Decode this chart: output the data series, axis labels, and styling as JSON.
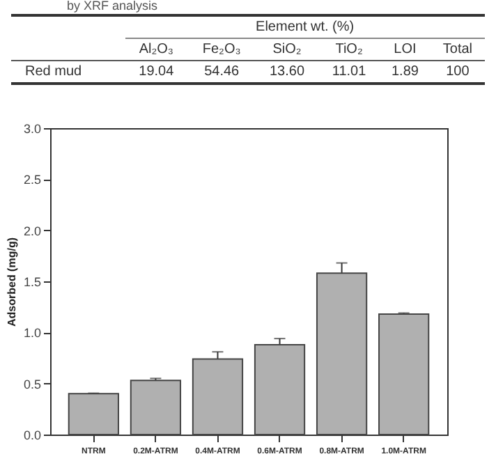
{
  "chart_data": [
    {
      "type": "other",
      "title": "by XRF analysis",
      "xlabel": "Element wt. (%)",
      "categories": [
        "Al₂O₃",
        "Fe₂O₃",
        "SiO₂",
        "TiO₂",
        "LOI",
        "Total"
      ],
      "y_categories": [
        "Red mud"
      ],
      "cell_labels": [
        [
          "19.04",
          "54.46",
          "13.60",
          "11.01",
          "1.89",
          "100"
        ]
      ]
    },
    {
      "type": "bar",
      "ylabel": "Adsorbed (mg/g)",
      "categories": [
        "NTRM",
        "0.2M-ATRM",
        "0.4M-ATRM",
        "0.6M-ATRM",
        "0.8M-ATRM",
        "1.0M-ATRM"
      ],
      "values": [
        0.4,
        0.53,
        0.74,
        0.88,
        1.58,
        1.18
      ],
      "errors": [
        0.005,
        0.02,
        0.07,
        0.06,
        0.1,
        0.01
      ],
      "color": "#b0b0b0",
      "ylim": [
        0,
        3
      ],
      "yticks": [
        {
          "value": 0,
          "label": "0.0"
        },
        {
          "value": 0.5,
          "label": "0.5"
        },
        {
          "value": 1,
          "label": "1.0"
        },
        {
          "value": 1.5,
          "label": "1.5"
        },
        {
          "value": 2,
          "label": "2.0"
        },
        {
          "value": 2.5,
          "label": "2.5"
        },
        {
          "value": 3,
          "label": "3.0"
        }
      ],
      "grid": false
    }
  ]
}
